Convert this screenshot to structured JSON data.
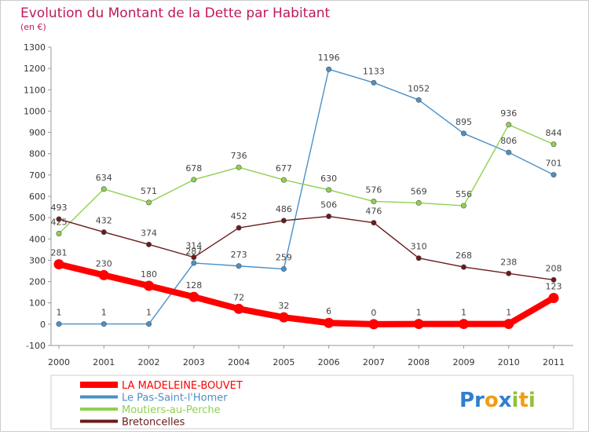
{
  "title": "Evolution du Montant de la Dette par Habitant",
  "subtitle": "(en €)",
  "brand": "Proxiti",
  "chart_data": {
    "type": "line",
    "title": "Evolution du Montant de la Dette par Habitant",
    "subtitle": "(en €)",
    "x": [
      "2000",
      "2001",
      "2002",
      "2003",
      "2004",
      "2005",
      "2006",
      "2007",
      "2008",
      "2009",
      "2010",
      "2011"
    ],
    "ylim": [
      -100,
      1300
    ],
    "yticks": [
      -100,
      0,
      100,
      200,
      300,
      400,
      500,
      600,
      700,
      800,
      900,
      1000,
      1100,
      1200,
      1300
    ],
    "grid": false,
    "legend": "bottom-left",
    "series": [
      {
        "name": "LA MADELEINE-BOUVET",
        "color": "#ff0000",
        "values": [
          281,
          230,
          180,
          128,
          72,
          32,
          6,
          0,
          1,
          1,
          1,
          123
        ]
      },
      {
        "name": "Le Pas-Saint-l'Homer",
        "color": "#4a90c8",
        "values": [
          1,
          1,
          1,
          287,
          273,
          259,
          1196,
          1133,
          1052,
          895,
          806,
          701
        ]
      },
      {
        "name": "Moutiers-au-Perche",
        "color": "#8fd14f",
        "values": [
          425,
          634,
          571,
          678,
          736,
          677,
          630,
          576,
          569,
          556,
          936,
          844
        ]
      },
      {
        "name": "Bretoncelles",
        "color": "#6b1a1a",
        "values": [
          493,
          432,
          374,
          314,
          452,
          486,
          506,
          476,
          310,
          268,
          238,
          208
        ]
      }
    ]
  }
}
